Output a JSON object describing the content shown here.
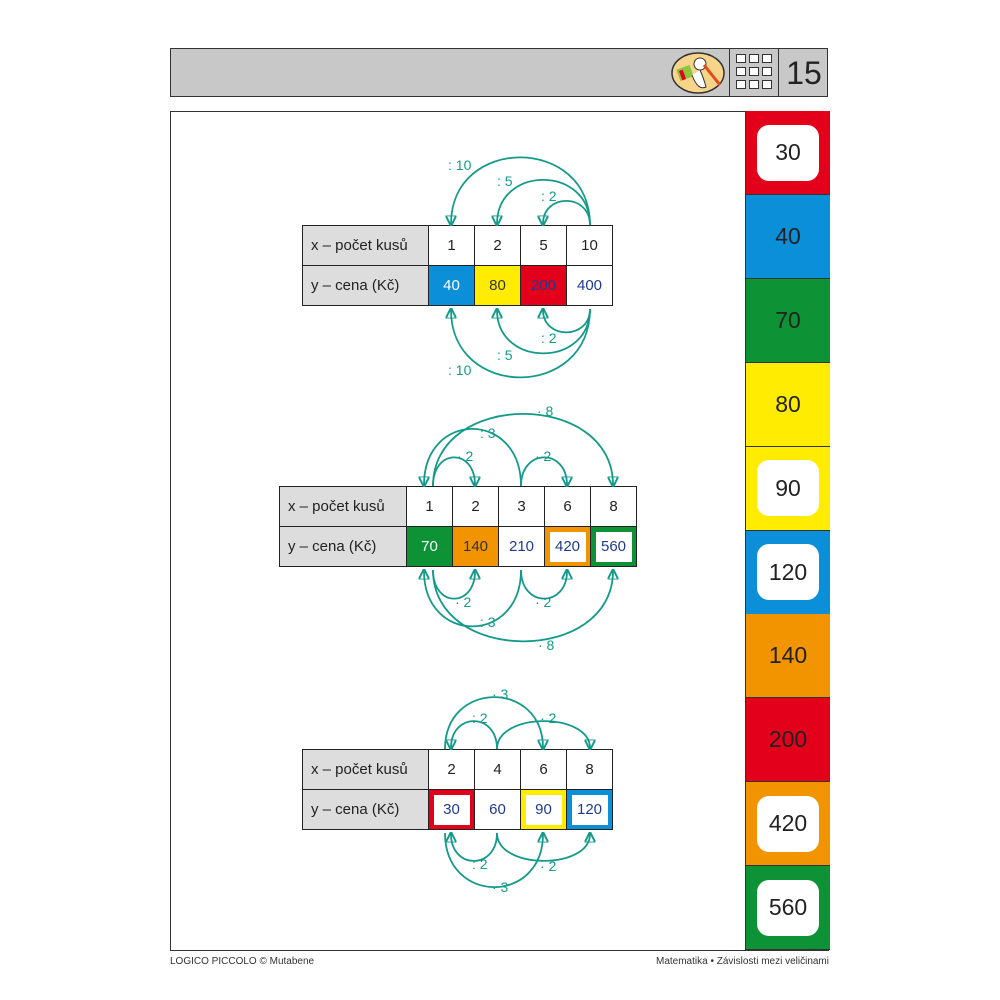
{
  "header": {
    "page_number": "15",
    "logo_icon": "stork-with-scarf",
    "grid_icon": "3x3-grid-icon"
  },
  "colors": {
    "red": "#e3001b",
    "blue": "#0a8fd8",
    "green": "#0e9236",
    "yellow": "#ffec00",
    "orange": "#f29400",
    "teal": "#139a8a",
    "value_text": "#1f3b8f"
  },
  "row_labels": {
    "x": "x – počet kusů",
    "y": "y – cena (Kč)"
  },
  "tables": [
    {
      "x": [
        "1",
        "2",
        "5",
        "10"
      ],
      "y": [
        "40",
        "80",
        "200",
        "400"
      ],
      "y_fill": [
        "blue",
        "yellow",
        "red",
        "none"
      ],
      "arrows_top": [
        ": 10",
        ": 5",
        ": 2"
      ],
      "arrows_bottom": [
        ": 2",
        ": 5",
        ": 10"
      ]
    },
    {
      "x": [
        "1",
        "2",
        "3",
        "6",
        "8"
      ],
      "y": [
        "70",
        "140",
        "210",
        "420",
        "560"
      ],
      "y_fill": [
        "green",
        "orange",
        "none",
        "orange-frame",
        "green-frame"
      ],
      "arrows_top": [
        "· 8",
        ": 3",
        "· 2",
        "· 2"
      ],
      "arrows_bottom": [
        "· 2",
        "· 2",
        ": 3",
        "· 8"
      ]
    },
    {
      "x": [
        "2",
        "4",
        "6",
        "8"
      ],
      "y": [
        "30",
        "60",
        "90",
        "120"
      ],
      "y_fill": [
        "red-frame",
        "none",
        "yellow-frame",
        "blue-frame"
      ],
      "arrows_top": [
        "· 3",
        ": 2",
        "· 2"
      ],
      "arrows_bottom": [
        ": 2",
        "· 2",
        "· 3"
      ]
    }
  ],
  "answer_strip": [
    {
      "value": "30",
      "color": "red",
      "boxed": true
    },
    {
      "value": "40",
      "color": "blue",
      "boxed": false
    },
    {
      "value": "70",
      "color": "green",
      "boxed": false
    },
    {
      "value": "80",
      "color": "yellow",
      "boxed": false
    },
    {
      "value": "90",
      "color": "yellow",
      "boxed": true
    },
    {
      "value": "120",
      "color": "blue",
      "boxed": true
    },
    {
      "value": "140",
      "color": "orange",
      "boxed": false
    },
    {
      "value": "200",
      "color": "red",
      "boxed": false
    },
    {
      "value": "420",
      "color": "orange",
      "boxed": true
    },
    {
      "value": "560",
      "color": "green",
      "boxed": true
    }
  ],
  "footer": {
    "left": "LOGICO PICCOLO © Mutabene",
    "right": "Matematika • Závislosti mezi veličinami"
  }
}
